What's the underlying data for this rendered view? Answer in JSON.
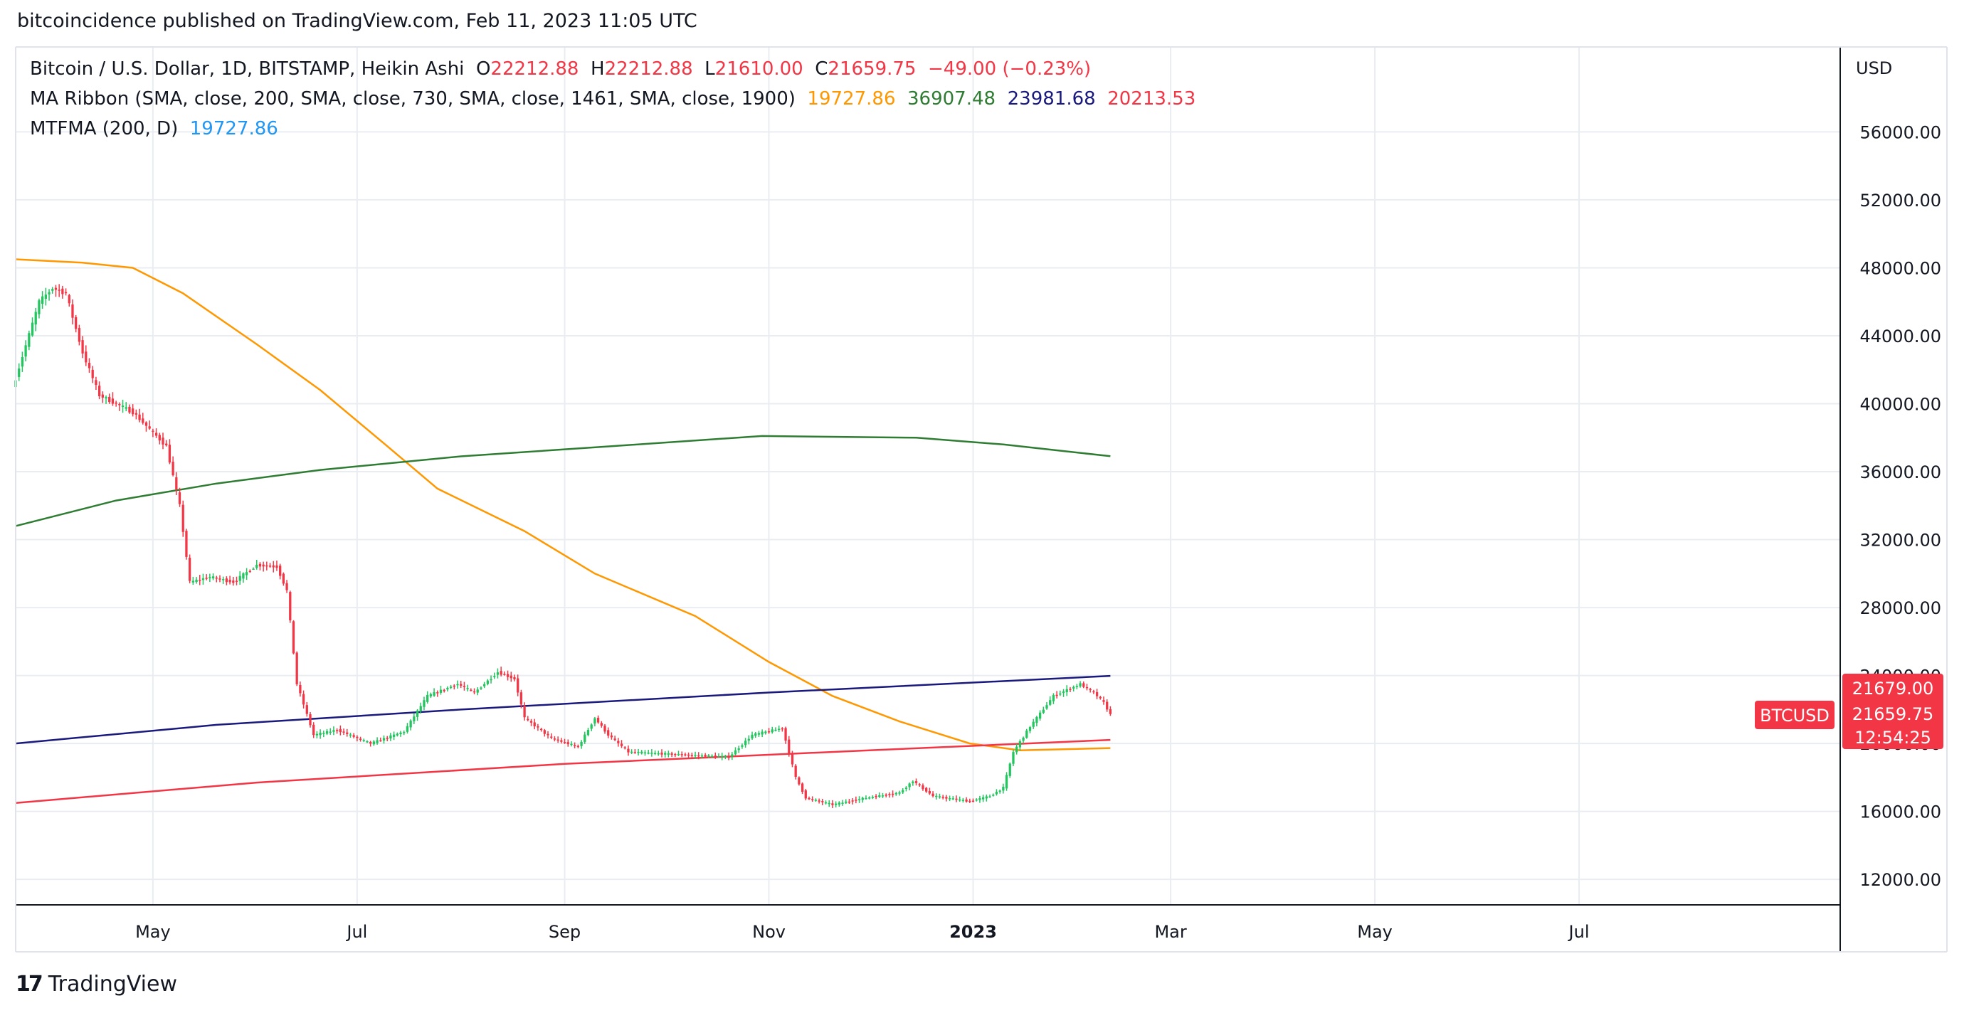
{
  "publisher_line": "bitcoincidence published on TradingView.com, Feb 11, 2023 11:05 UTC",
  "legend": {
    "symbol": "Bitcoin / U.S. Dollar, 1D, BITSTAMP, Heikin Ashi",
    "o_label": "O",
    "o_value": "22212.88",
    "h_label": "H",
    "h_value": "22212.88",
    "l_label": "L",
    "l_value": "21610.00",
    "c_label": "C",
    "c_value": "21659.75",
    "change": "−49.00 (−0.23%)",
    "ma_ribbon_name": "MA Ribbon (SMA, close, 200, SMA, close, 730, SMA, close, 1461, SMA, close, 1900)",
    "ma_values": [
      "19727.86",
      "36907.48",
      "23981.68",
      "20213.53"
    ],
    "ma_colors": [
      "#ff9800",
      "#2e7d32",
      "#1a1a7e",
      "#f23645"
    ],
    "mtfma_name": "MTFMA (200, D)",
    "mtfma_value": "19727.86",
    "mtfma_color": "#2196f3"
  },
  "price_tags": {
    "ask": "21679.00",
    "last": "21659.75",
    "countdown": "12:54:25",
    "symbol_badge": "BTCUSD",
    "color": "#f23645"
  },
  "footer": {
    "logo_mark": "17",
    "brand": "TradingView"
  },
  "colors": {
    "up": "#26a69a",
    "up_bright": "#22c55e",
    "down": "#f23645",
    "grid": "#e9edf2"
  },
  "chart_data": {
    "type": "candlestick",
    "title": "Bitcoin / U.S. Dollar, 1D, BITSTAMP, Heikin Ashi",
    "currency": "USD",
    "ylim": [
      10500,
      61000
    ],
    "y_ticks": [
      12000,
      16000,
      20000,
      24000,
      28000,
      32000,
      36000,
      40000,
      44000,
      48000,
      52000,
      56000
    ],
    "y_tick_labels": [
      "12000.00",
      "16000.00",
      "20000.00",
      "24000.00",
      "28000.00",
      "32000.00",
      "36000.00",
      "40000.00",
      "44000.00",
      "48000.00",
      "52000.00",
      "56000.00"
    ],
    "x_ticks": [
      {
        "label": "May",
        "date": "2022-05-01"
      },
      {
        "label": "Jul",
        "date": "2022-07-01"
      },
      {
        "label": "Sep",
        "date": "2022-09-01"
      },
      {
        "label": "Nov",
        "date": "2022-11-01"
      },
      {
        "label": "2023",
        "date": "2023-01-01",
        "bold": true
      },
      {
        "label": "Mar",
        "date": "2023-03-01"
      },
      {
        "label": "May",
        "date": "2023-05-01"
      },
      {
        "label": "Jul",
        "date": "2023-07-01"
      }
    ],
    "x_range": [
      "2022-03-21",
      "2023-09-17"
    ],
    "price_path": [
      [
        "2022-03-21",
        41500
      ],
      [
        "2022-03-28",
        46000
      ],
      [
        "2022-04-01",
        46800
      ],
      [
        "2022-04-05",
        46500
      ],
      [
        "2022-04-10",
        43000
      ],
      [
        "2022-04-15",
        40500
      ],
      [
        "2022-04-20",
        40000
      ],
      [
        "2022-04-25",
        39500
      ],
      [
        "2022-04-30",
        38500
      ],
      [
        "2022-05-05",
        37500
      ],
      [
        "2022-05-09",
        34000
      ],
      [
        "2022-05-12",
        29500
      ],
      [
        "2022-05-18",
        29800
      ],
      [
        "2022-05-25",
        29500
      ],
      [
        "2022-06-01",
        30500
      ],
      [
        "2022-06-07",
        30400
      ],
      [
        "2022-06-10",
        29000
      ],
      [
        "2022-06-13",
        23500
      ],
      [
        "2022-06-18",
        20500
      ],
      [
        "2022-06-25",
        20800
      ],
      [
        "2022-07-05",
        20000
      ],
      [
        "2022-07-15",
        20700
      ],
      [
        "2022-07-22",
        22800
      ],
      [
        "2022-07-31",
        23500
      ],
      [
        "2022-08-05",
        23000
      ],
      [
        "2022-08-12",
        24200
      ],
      [
        "2022-08-17",
        23800
      ],
      [
        "2022-08-20",
        21500
      ],
      [
        "2022-08-28",
        20300
      ],
      [
        "2022-09-05",
        19800
      ],
      [
        "2022-09-10",
        21500
      ],
      [
        "2022-09-14",
        20500
      ],
      [
        "2022-09-20",
        19500
      ],
      [
        "2022-09-30",
        19400
      ],
      [
        "2022-10-10",
        19300
      ],
      [
        "2022-10-20",
        19200
      ],
      [
        "2022-10-27",
        20500
      ],
      [
        "2022-11-05",
        20900
      ],
      [
        "2022-11-09",
        18000
      ],
      [
        "2022-11-12",
        16800
      ],
      [
        "2022-11-20",
        16400
      ],
      [
        "2022-11-30",
        16800
      ],
      [
        "2022-12-10",
        17100
      ],
      [
        "2022-12-14",
        17800
      ],
      [
        "2022-12-20",
        16900
      ],
      [
        "2022-12-31",
        16600
      ],
      [
        "2023-01-06",
        16900
      ],
      [
        "2023-01-10",
        17400
      ],
      [
        "2023-01-13",
        19500
      ],
      [
        "2023-01-18",
        21000
      ],
      [
        "2023-01-25",
        22800
      ],
      [
        "2023-02-02",
        23500
      ],
      [
        "2023-02-06",
        23000
      ],
      [
        "2023-02-09",
        22400
      ],
      [
        "2023-02-11",
        21700
      ]
    ],
    "series": [
      {
        "name": "SMA 200",
        "color": "#ff9800",
        "points": [
          [
            "2022-03-21",
            48500
          ],
          [
            "2022-04-10",
            48300
          ],
          [
            "2022-04-25",
            48000
          ],
          [
            "2022-05-10",
            46500
          ],
          [
            "2022-06-01",
            43500
          ],
          [
            "2022-06-20",
            40800
          ],
          [
            "2022-07-10",
            37500
          ],
          [
            "2022-07-25",
            35000
          ],
          [
            "2022-08-20",
            32500
          ],
          [
            "2022-09-10",
            30000
          ],
          [
            "2022-10-10",
            27500
          ],
          [
            "2022-11-01",
            24800
          ],
          [
            "2022-11-20",
            22800
          ],
          [
            "2022-12-10",
            21300
          ],
          [
            "2022-12-31",
            20000
          ],
          [
            "2023-01-15",
            19600
          ],
          [
            "2023-02-11",
            19730
          ]
        ]
      },
      {
        "name": "SMA 730",
        "color": "#2e7d32",
        "points": [
          [
            "2022-03-21",
            32800
          ],
          [
            "2022-04-20",
            34300
          ],
          [
            "2022-05-20",
            35300
          ],
          [
            "2022-06-20",
            36100
          ],
          [
            "2022-08-01",
            36900
          ],
          [
            "2022-09-15",
            37500
          ],
          [
            "2022-10-30",
            38100
          ],
          [
            "2022-12-15",
            38000
          ],
          [
            "2023-01-10",
            37600
          ],
          [
            "2023-02-11",
            36910
          ]
        ]
      },
      {
        "name": "SMA 1461",
        "color": "#1a1a7e",
        "points": [
          [
            "2022-03-21",
            20000
          ],
          [
            "2022-05-20",
            21100
          ],
          [
            "2022-08-01",
            22000
          ],
          [
            "2022-11-01",
            23000
          ],
          [
            "2023-02-11",
            23980
          ]
        ]
      },
      {
        "name": "SMA 1900",
        "color": "#f23645",
        "points": [
          [
            "2022-03-21",
            16500
          ],
          [
            "2022-06-01",
            17700
          ],
          [
            "2022-09-01",
            18800
          ],
          [
            "2022-12-01",
            19600
          ],
          [
            "2023-02-11",
            20210
          ]
        ]
      }
    ]
  }
}
